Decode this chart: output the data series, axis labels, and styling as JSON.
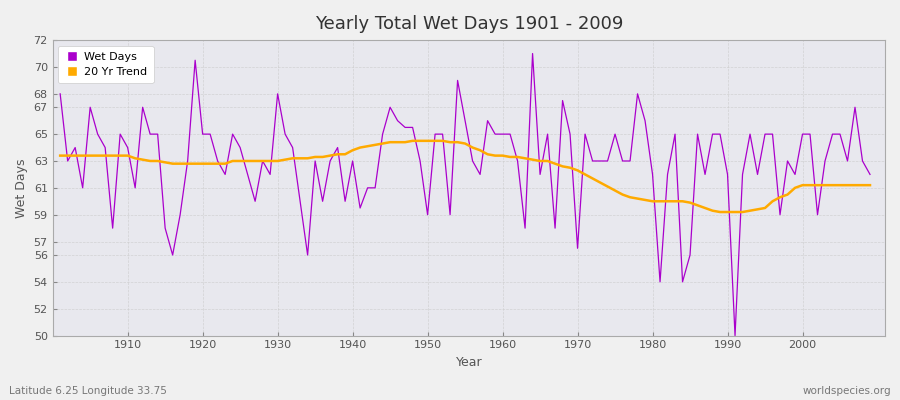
{
  "title": "Yearly Total Wet Days 1901 - 2009",
  "xlabel": "Year",
  "ylabel": "Wet Days",
  "subtitle": "Latitude 6.25 Longitude 33.75",
  "credit": "worldspecies.org",
  "line_color": "#aa00cc",
  "trend_color": "#ffaa00",
  "fig_bg_color": "#f0f0f0",
  "plot_bg_color": "#e8e8ee",
  "ylim": [
    50,
    72
  ],
  "yticks": [
    50,
    52,
    54,
    56,
    57,
    59,
    61,
    63,
    65,
    67,
    68,
    70,
    72
  ],
  "xticks": [
    1910,
    1920,
    1930,
    1940,
    1950,
    1960,
    1970,
    1980,
    1990,
    2000
  ],
  "years": [
    1901,
    1902,
    1903,
    1904,
    1905,
    1906,
    1907,
    1908,
    1909,
    1910,
    1911,
    1912,
    1913,
    1914,
    1915,
    1916,
    1917,
    1918,
    1919,
    1920,
    1921,
    1922,
    1923,
    1924,
    1925,
    1926,
    1927,
    1928,
    1929,
    1930,
    1931,
    1932,
    1933,
    1934,
    1935,
    1936,
    1937,
    1938,
    1939,
    1940,
    1941,
    1942,
    1943,
    1944,
    1945,
    1946,
    1947,
    1948,
    1949,
    1950,
    1951,
    1952,
    1953,
    1954,
    1955,
    1956,
    1957,
    1958,
    1959,
    1960,
    1961,
    1962,
    1963,
    1964,
    1965,
    1966,
    1967,
    1968,
    1969,
    1970,
    1971,
    1972,
    1973,
    1974,
    1975,
    1976,
    1977,
    1978,
    1979,
    1980,
    1981,
    1982,
    1983,
    1984,
    1985,
    1986,
    1987,
    1988,
    1989,
    1990,
    1991,
    1992,
    1993,
    1994,
    1995,
    1996,
    1997,
    1998,
    1999,
    2000,
    2001,
    2002,
    2003,
    2004,
    2005,
    2006,
    2007,
    2008,
    2009
  ],
  "wet_days": [
    68,
    63,
    64,
    61,
    67,
    65,
    64,
    58,
    65,
    64,
    61,
    67,
    65,
    65,
    58,
    56,
    59,
    63,
    70.5,
    65,
    65,
    63,
    62,
    65,
    64,
    62,
    60,
    63,
    62,
    68,
    65,
    64,
    60,
    56,
    63,
    60,
    63,
    64,
    60,
    63,
    59.5,
    61,
    61,
    65,
    67,
    66,
    65.5,
    65.5,
    63,
    59,
    65,
    65,
    59,
    69,
    66,
    63,
    62,
    66,
    65,
    65,
    65,
    63,
    58,
    71,
    62,
    65,
    58,
    67.5,
    65,
    56.5,
    65,
    63,
    63,
    63,
    65,
    63,
    63,
    68,
    66,
    62,
    54,
    62,
    65,
    54,
    56,
    65,
    62,
    65,
    65,
    62,
    50,
    62,
    65,
    62,
    65,
    65,
    59,
    63,
    62,
    65,
    65,
    59,
    63,
    65,
    65,
    63,
    67,
    63,
    62
  ],
  "trend": [
    63.4,
    63.4,
    63.4,
    63.4,
    63.4,
    63.4,
    63.4,
    63.4,
    63.4,
    63.4,
    63.2,
    63.1,
    63.0,
    63.0,
    62.9,
    62.8,
    62.8,
    62.8,
    62.8,
    62.8,
    62.8,
    62.8,
    62.8,
    63.0,
    63.0,
    63.0,
    63.0,
    63.0,
    63.0,
    63.0,
    63.1,
    63.2,
    63.2,
    63.2,
    63.3,
    63.3,
    63.4,
    63.5,
    63.5,
    63.8,
    64.0,
    64.1,
    64.2,
    64.3,
    64.4,
    64.4,
    64.4,
    64.5,
    64.5,
    64.5,
    64.5,
    64.5,
    64.4,
    64.4,
    64.3,
    64.0,
    63.8,
    63.5,
    63.4,
    63.4,
    63.3,
    63.3,
    63.2,
    63.1,
    63.0,
    63.0,
    62.8,
    62.6,
    62.5,
    62.3,
    62.0,
    61.7,
    61.4,
    61.1,
    60.8,
    60.5,
    60.3,
    60.2,
    60.1,
    60.0,
    60.0,
    60.0,
    60.0,
    60.0,
    59.9,
    59.7,
    59.5,
    59.3,
    59.2,
    59.2,
    59.2,
    59.2,
    59.3,
    59.4,
    59.5,
    60.0,
    60.3,
    60.5,
    61.0,
    61.2,
    61.2,
    61.2,
    61.2,
    61.2,
    61.2,
    61.2,
    61.2,
    61.2,
    61.2
  ]
}
